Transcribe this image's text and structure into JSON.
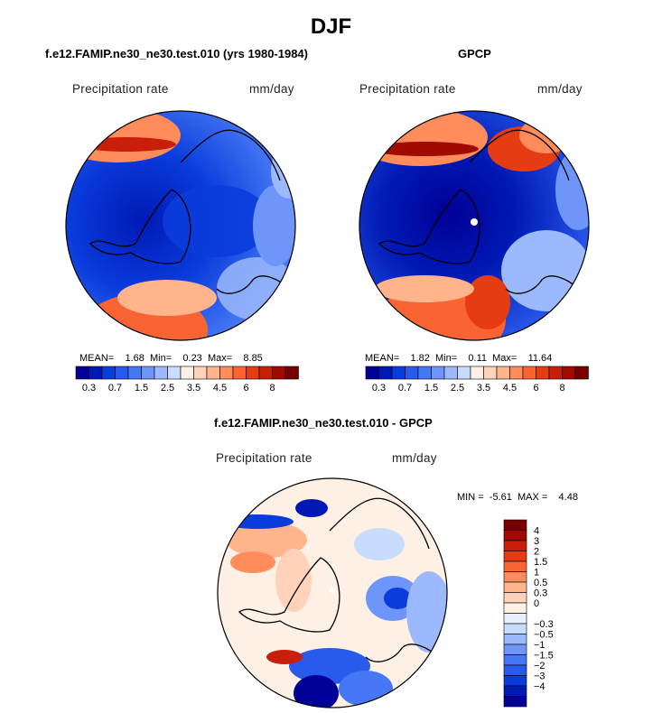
{
  "page": {
    "title": "DJF"
  },
  "chart_data": [
    {
      "type": "heatmap",
      "projection": "north polar stereographic",
      "panel_title": "f.e12.FAMIP.ne30_ne30.test.010 (yrs 1980-1984)",
      "variable": "Precipitation rate",
      "units": "mm/day",
      "stats": {
        "mean_label": "MEAN=",
        "mean": "1.68",
        "min_label": "Min=",
        "min": "0.23",
        "max_label": "Max=",
        "max": "8.85"
      },
      "colorbar": {
        "orientation": "horizontal",
        "colors": [
          "#000096",
          "#0019b4",
          "#0a3cdc",
          "#285aeb",
          "#4678f5",
          "#6e96fa",
          "#9bb9fc",
          "#c8dcfe",
          "#fff0e6",
          "#ffd2b9",
          "#ffb48c",
          "#ff8c5a",
          "#fa6432",
          "#e63c14",
          "#c81e0a",
          "#a00a00",
          "#780000"
        ],
        "tick_labels": [
          "0.3",
          "0.7",
          "1.5",
          "2.5",
          "3.5",
          "4.5",
          "6",
          "8"
        ]
      }
    },
    {
      "type": "heatmap",
      "projection": "north polar stereographic",
      "panel_title": "GPCP",
      "variable": "Precipitation rate",
      "units": "mm/day",
      "stats": {
        "mean_label": "MEAN=",
        "mean": "1.82",
        "min_label": "Min=",
        "min": "0.11",
        "max_label": "Max=",
        "max": "11.64"
      },
      "colorbar": {
        "orientation": "horizontal",
        "colors": [
          "#000096",
          "#0019b4",
          "#0a3cdc",
          "#285aeb",
          "#4678f5",
          "#6e96fa",
          "#9bb9fc",
          "#c8dcfe",
          "#fff0e6",
          "#ffd2b9",
          "#ffb48c",
          "#ff8c5a",
          "#fa6432",
          "#e63c14",
          "#c81e0a",
          "#a00a00",
          "#780000"
        ],
        "tick_labels": [
          "0.3",
          "0.7",
          "1.5",
          "2.5",
          "3.5",
          "4.5",
          "6",
          "8"
        ]
      }
    },
    {
      "type": "heatmap",
      "projection": "north polar stereographic",
      "panel_title": "f.e12.FAMIP.ne30_ne30.test.010 - GPCP",
      "variable": "Precipitation rate",
      "units": "mm/day",
      "stats": {
        "min_label": "MIN =",
        "min": "-5.61",
        "max_label": "MAX =",
        "max": "4.48"
      },
      "colorbar": {
        "orientation": "vertical",
        "colors_top_to_bottom": [
          "#780000",
          "#a00a00",
          "#c81e0a",
          "#e63c14",
          "#fa6432",
          "#ff8c5a",
          "#ffb48c",
          "#ffd2b9",
          "#fff0e6",
          "#e6f0ff",
          "#c8dcfe",
          "#9bb9fc",
          "#6e96fa",
          "#4678f5",
          "#285aeb",
          "#0a3cdc",
          "#0019b4",
          "#000096"
        ],
        "tick_labels": [
          "4",
          "3",
          "2",
          "1.5",
          "1",
          "0.5",
          "0.3",
          "0",
          "−0.3",
          "−0.5",
          "−1",
          "−1.5",
          "−2",
          "−3",
          "−4"
        ]
      }
    }
  ]
}
